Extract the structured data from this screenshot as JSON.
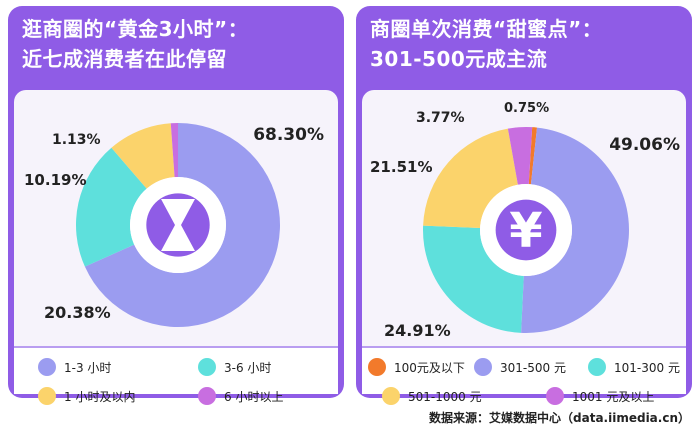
{
  "chart_data": [
    {
      "type": "pie",
      "title_line1": "逛商圈的“黄金3小时”：",
      "title_line2": "近七成消费者在此停留",
      "categories": [
        "1-3 小时",
        "3-6 小时",
        "1 小时及以内",
        "6 小时以上"
      ],
      "values": [
        68.3,
        20.38,
        10.19,
        1.13
      ],
      "labels": [
        "68.30%",
        "20.38%",
        "10.19%",
        "1.13%"
      ],
      "colors": [
        "#9b9cf0",
        "#5ee0dc",
        "#fbd36b",
        "#c86ee0"
      ],
      "center_icon": "hourglass-icon"
    },
    {
      "type": "pie",
      "title_line1": "商圈单次消费“甜蜜点”：",
      "title_line2": "301-500元成主流",
      "categories": [
        "100元及以下",
        "301-500 元",
        "101-300 元",
        "501-1000 元",
        "1001 元及以上"
      ],
      "values": [
        0.75,
        49.06,
        24.91,
        21.51,
        3.77
      ],
      "labels": [
        "0.75%",
        "49.06%",
        "24.91%",
        "21.51%",
        "3.77%"
      ],
      "colors": [
        "#f27a2b",
        "#9b9cf0",
        "#5ee0dc",
        "#fbd36b",
        "#c86ee0"
      ],
      "center_icon": "yuan-icon"
    }
  ],
  "source": "数据来源：艾媒数据中心（data.iimedia.cn）"
}
